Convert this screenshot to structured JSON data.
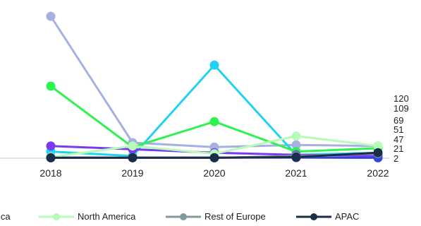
{
  "chart_data": {
    "type": "line",
    "x": [
      "2018",
      "2019",
      "2020",
      "2021",
      "2022"
    ],
    "ylim": [
      0,
      650
    ],
    "grid": false,
    "legend_position": "bottom",
    "end_labels": [
      "120",
      "109",
      "69",
      "51",
      "47",
      "21",
      "2"
    ],
    "series": [
      {
        "name": "",
        "color": "#a7b0e2",
        "values": [
          640,
          70,
          50,
          60,
          55
        ],
        "legend": false
      },
      {
        "name": "",
        "color": "#20d1f2",
        "values": [
          30,
          10,
          420,
          15,
          25
        ],
        "legend": false
      },
      {
        "name": "",
        "color": "#2df24f",
        "values": [
          325,
          50,
          165,
          30,
          45
        ],
        "legend": false
      },
      {
        "name": "",
        "color": "#7a3af0",
        "values": [
          55,
          40,
          25,
          15,
          10
        ],
        "legend": false
      },
      {
        "name": "",
        "color": "#3344dd",
        "values": [
          3,
          3,
          3,
          3,
          2
        ],
        "legend": false
      },
      {
        "name": "North America",
        "color": "#b6fbb6",
        "values": [
          5,
          55,
          20,
          100,
          55
        ],
        "legend": true
      },
      {
        "name": "Rest of Europe",
        "color": "#7e9c9c",
        "values": [
          2,
          3,
          2,
          10,
          21
        ],
        "legend": true
      },
      {
        "name": "APAC",
        "color": "#1b2e48",
        "values": [
          2,
          2,
          2,
          5,
          25
        ],
        "legend": true
      }
    ],
    "partial_legend_text": "ica"
  }
}
